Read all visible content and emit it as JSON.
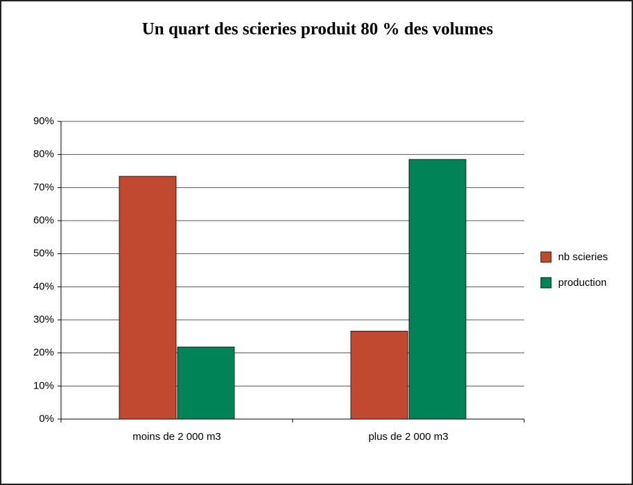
{
  "chart_data": {
    "type": "bar",
    "title": "Un quart des scieries produit 80 % des volumes",
    "categories": [
      "moins de 2 000 m3",
      "plus de 2 000 m3"
    ],
    "series": [
      {
        "name": "nb scieries",
        "color": "#c1492f",
        "values": [
          73.4,
          26.6
        ]
      },
      {
        "name": "production",
        "color": "#008457",
        "values": [
          21.8,
          78.5
        ]
      }
    ],
    "ylim": [
      0,
      90
    ],
    "yticks": [
      {
        "value": 0,
        "label": "0%"
      },
      {
        "value": 10,
        "label": "10%"
      },
      {
        "value": 20,
        "label": "20%"
      },
      {
        "value": 30,
        "label": "30%"
      },
      {
        "value": 40,
        "label": "40%"
      },
      {
        "value": 50,
        "label": "50%"
      },
      {
        "value": 60,
        "label": "60%"
      },
      {
        "value": 70,
        "label": "70%"
      },
      {
        "value": 80,
        "label": "80%"
      },
      {
        "value": 90,
        "label": "90%"
      }
    ],
    "grid": true,
    "legend": "right"
  }
}
